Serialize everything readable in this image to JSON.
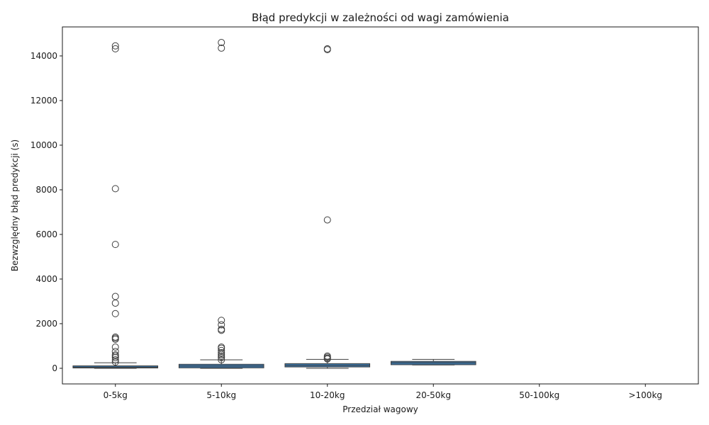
{
  "chart_data": {
    "type": "box",
    "title": "Błąd predykcji w zależności od wagi zamówienia",
    "xlabel": "Przedział wagowy",
    "ylabel": "Bezwzględny błąd predykcji (s)",
    "ylim": [
      -700,
      15300
    ],
    "yticks": [
      0,
      2000,
      4000,
      6000,
      8000,
      10000,
      12000,
      14000
    ],
    "grid": false,
    "box_color": "#3a75a8",
    "categories": [
      "0-5kg",
      "5-10kg",
      "10-20kg",
      "20-50kg",
      "50-100kg",
      ">100kg"
    ],
    "boxes": [
      {
        "category": "0-5kg",
        "whisker_low": 0,
        "q1": 15,
        "median": 50,
        "q3": 110,
        "whisker_high": 250,
        "outliers": [
          280,
          380,
          480,
          550,
          600,
          750,
          950,
          1300,
          1350,
          1400,
          2450,
          2920,
          3220,
          5550,
          8050,
          14320,
          14450
        ]
      },
      {
        "category": "5-10kg",
        "whisker_low": 0,
        "q1": 20,
        "median": 100,
        "q3": 180,
        "whisker_high": 380,
        "outliers": [
          380,
          480,
          550,
          620,
          700,
          800,
          900,
          950,
          1700,
          1750,
          1950,
          2150,
          14350,
          14600
        ]
      },
      {
        "category": "10-20kg",
        "whisker_low": 0,
        "q1": 60,
        "median": 130,
        "q3": 210,
        "whisker_high": 400,
        "outliers": [
          420,
          450,
          500,
          550,
          6650,
          14280,
          14320
        ]
      },
      {
        "category": "20-50kg",
        "whisker_low": 150,
        "q1": 160,
        "median": 250,
        "q3": 310,
        "whisker_high": 400,
        "outliers": []
      },
      {
        "category": "50-100kg",
        "empty": true
      },
      {
        "category": ">100kg",
        "empty": true
      }
    ]
  }
}
